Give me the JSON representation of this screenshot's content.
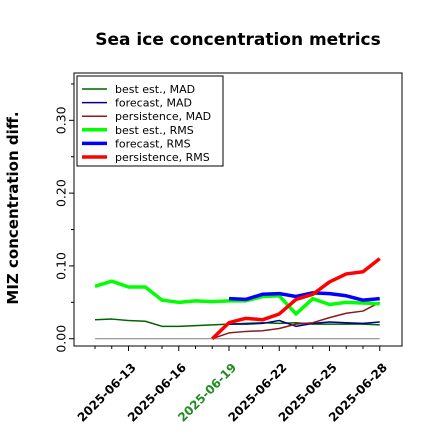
{
  "chart_data": {
    "type": "line",
    "title": "Sea ice concentration metrics",
    "ylabel": "MIZ concentration diff.",
    "xlabel": "",
    "ylim": [
      -0.01,
      0.365
    ],
    "yticks": [
      0.0,
      0.1,
      0.2,
      0.3
    ],
    "ytick_labels": [
      "0.00",
      "0.10",
      "0.20",
      "0.30"
    ],
    "x_dates": [
      "2025-06-11",
      "2025-06-12",
      "2025-06-13",
      "2025-06-14",
      "2025-06-15",
      "2025-06-16",
      "2025-06-17",
      "2025-06-18",
      "2025-06-19",
      "2025-06-20",
      "2025-06-21",
      "2025-06-22",
      "2025-06-23",
      "2025-06-24",
      "2025-06-25",
      "2025-06-26",
      "2025-06-27",
      "2025-06-28"
    ],
    "xtick_labels": [
      "2025-06-13",
      "2025-06-16",
      "2025-06-19",
      "2025-06-22",
      "2025-06-25",
      "2025-06-28"
    ],
    "xtick_colors": [
      "#000000",
      "#000000",
      "#228b22",
      "#000000",
      "#000000",
      "#000000"
    ],
    "grid": false,
    "legend_position": "top-left",
    "series": [
      {
        "name": "best est., MAD",
        "color": "#006400",
        "width": 1.5,
        "values": [
          0.026,
          0.027,
          0.025,
          0.024,
          0.017,
          0.017,
          0.018,
          0.019,
          0.02,
          0.021,
          0.022,
          0.021,
          0.022,
          0.02,
          0.02,
          0.02,
          0.02,
          0.019
        ]
      },
      {
        "name": "forecast,  MAD",
        "color": "#00008b",
        "width": 1.5,
        "values": [
          null,
          null,
          null,
          null,
          null,
          null,
          null,
          null,
          0.02,
          0.02,
          0.021,
          0.025,
          0.017,
          0.021,
          0.023,
          0.022,
          0.021,
          0.023
        ]
      },
      {
        "name": "persistence, MAD",
        "color": "#8b1a1a",
        "width": 1.5,
        "values": [
          null,
          null,
          null,
          null,
          null,
          null,
          null,
          0.0,
          0.008,
          0.01,
          0.011,
          0.014,
          0.02,
          0.022,
          0.029,
          0.035,
          0.038,
          0.05
        ]
      },
      {
        "name": "best est., RMS",
        "color": "#00ff00",
        "width": 3.5,
        "values": [
          0.072,
          0.079,
          0.071,
          0.071,
          0.053,
          0.05,
          0.052,
          0.051,
          0.052,
          0.052,
          0.058,
          0.059,
          0.034,
          0.055,
          0.047,
          0.05,
          0.049,
          0.048
        ]
      },
      {
        "name": "forecast,  RMS",
        "color": "#0000ff",
        "width": 3.5,
        "values": [
          null,
          null,
          null,
          null,
          null,
          null,
          null,
          null,
          0.055,
          0.054,
          0.061,
          0.062,
          0.058,
          0.063,
          0.062,
          0.059,
          0.053,
          0.055
        ]
      },
      {
        "name": "persistence, RMS",
        "color": "#ff0000",
        "width": 3.5,
        "values": [
          null,
          null,
          null,
          null,
          null,
          null,
          null,
          0.0,
          0.022,
          0.028,
          0.026,
          0.034,
          0.054,
          0.061,
          0.078,
          0.089,
          0.092,
          0.11
        ]
      }
    ],
    "baseline": {
      "value": 0.0,
      "color": "#808080",
      "width": 1
    }
  }
}
